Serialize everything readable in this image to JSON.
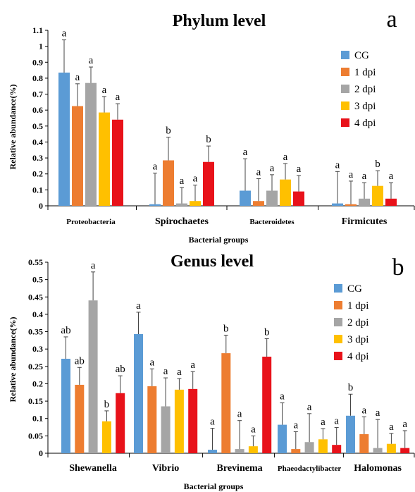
{
  "colors": {
    "CG": "#5b9bd5",
    "1 dpi": "#ed7d31",
    "2 dpi": "#a5a5a5",
    "3 dpi": "#ffc000",
    "4 dpi": "#e8121a"
  },
  "chart_data": [
    {
      "type": "bar",
      "panel": "a",
      "title": "Phylum level",
      "xlabel": "Bacterial groups",
      "ylabel": "Relative abundance(%)",
      "ylim": [
        0,
        1.1
      ],
      "yticks": [
        "0",
        "0.1",
        "0.2",
        "0.3",
        "0.4",
        "0.5",
        "0.6",
        "0.7",
        "0.8",
        "0.9",
        "1",
        "1.1"
      ],
      "legend_position": "right",
      "categories": [
        "Proteobacteria",
        "Spirochaetes",
        "Bacteroidetes",
        "Firmicutes"
      ],
      "series": [
        {
          "name": "CG",
          "values": [
            0.835,
            0.01,
            0.095,
            0.015
          ],
          "errors": [
            0.205,
            0.195,
            0.2,
            0.2
          ],
          "labels": [
            "a",
            "a",
            "a",
            "a"
          ]
        },
        {
          "name": "1 dpi",
          "values": [
            0.625,
            0.285,
            0.03,
            0.01
          ],
          "errors": [
            0.14,
            0.145,
            0.14,
            0.145
          ],
          "labels": [
            "a",
            "b",
            "a",
            "a"
          ]
        },
        {
          "name": "2 dpi",
          "values": [
            0.77,
            0.015,
            0.095,
            0.045
          ],
          "errors": [
            0.1,
            0.1,
            0.1,
            0.1
          ],
          "labels": [
            "a",
            "a",
            "a",
            "a"
          ]
        },
        {
          "name": "3 dpi",
          "values": [
            0.585,
            0.03,
            0.165,
            0.125
          ],
          "errors": [
            0.1,
            0.1,
            0.1,
            0.095
          ],
          "labels": [
            "a",
            "a",
            "a",
            "b"
          ]
        },
        {
          "name": "4 dpi",
          "values": [
            0.54,
            0.275,
            0.09,
            0.045
          ],
          "errors": [
            0.1,
            0.1,
            0.1,
            0.1
          ],
          "labels": [
            "a",
            "b",
            "a",
            "a"
          ]
        }
      ]
    },
    {
      "type": "bar",
      "panel": "b",
      "title": "Genus level",
      "xlabel": "Bacterial groups",
      "ylabel": "Relative abundance(%)",
      "ylim": [
        0,
        0.55
      ],
      "yticks": [
        "0",
        "0.05",
        "0.1",
        "0.15",
        "0.2",
        "0.25",
        "0.3",
        "0.35",
        "0.4",
        "0.45",
        "0.5",
        "0.55"
      ],
      "legend_position": "right",
      "categories": [
        "Shewanella",
        "Vibrio",
        "Brevinema",
        "Phaeodactylibacter",
        "Halomonas"
      ],
      "series": [
        {
          "name": "CG",
          "values": [
            0.272,
            0.343,
            0.01,
            0.082,
            0.108
          ],
          "errors": [
            0.063,
            0.063,
            0.062,
            0.063,
            0.062
          ],
          "labels": [
            "ab",
            "a",
            "a",
            "a",
            "b"
          ]
        },
        {
          "name": "1 dpi",
          "values": [
            0.197,
            0.193,
            0.288,
            0.012,
            0.055
          ],
          "errors": [
            0.05,
            0.05,
            0.052,
            0.05,
            0.05
          ],
          "labels": [
            "ab",
            "a",
            "b",
            "a",
            "a"
          ]
        },
        {
          "name": "2 dpi",
          "values": [
            0.44,
            0.135,
            0.012,
            0.032,
            0.015
          ],
          "errors": [
            0.082,
            0.082,
            0.082,
            0.082,
            0.082
          ],
          "labels": [
            "a",
            "a",
            "a",
            "a",
            "a"
          ]
        },
        {
          "name": "3 dpi",
          "values": [
            0.092,
            0.183,
            0.02,
            0.04,
            0.027
          ],
          "errors": [
            0.03,
            0.032,
            0.03,
            0.031,
            0.03
          ],
          "labels": [
            "b",
            "a",
            "a",
            "a",
            "a"
          ]
        },
        {
          "name": "4 dpi",
          "values": [
            0.173,
            0.185,
            0.278,
            0.024,
            0.015
          ],
          "errors": [
            0.05,
            0.05,
            0.052,
            0.05,
            0.05
          ],
          "labels": [
            "ab",
            "a",
            "b",
            "a",
            "a"
          ]
        }
      ]
    }
  ]
}
